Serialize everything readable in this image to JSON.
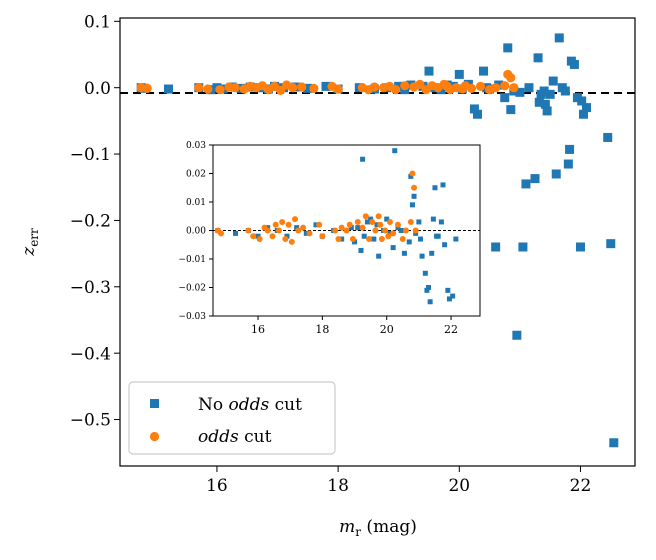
{
  "chart_data": [
    {
      "type": "scatter",
      "title": "",
      "xlabel": "m_r (mag)",
      "xlabel_main": "m",
      "xlabel_sub": "r",
      "xlabel_unit": " (mag)",
      "ylabel": "z_err",
      "ylabel_main": "z",
      "ylabel_sub": "err",
      "xlim": [
        14.4,
        22.9
      ],
      "ylim": [
        -0.57,
        0.105
      ],
      "xticks": [
        16,
        18,
        20,
        22
      ],
      "yticks": [
        0.1,
        0.0,
        -0.1,
        -0.2,
        -0.3,
        -0.4,
        -0.5
      ],
      "xtick_labels": [
        "16",
        "18",
        "20",
        "22"
      ],
      "ytick_labels": [
        "0.1",
        "0.0",
        "−0.1",
        "−0.2",
        "−0.3",
        "−0.4",
        "−0.5"
      ],
      "reference_line": 0,
      "grid": false,
      "legend_position": "bottom-left",
      "legend": {
        "no_odds": {
          "prefix": "No ",
          "italic": "odds",
          "suffix": " cut"
        },
        "odds": {
          "prefix": "",
          "italic": "odds",
          "suffix": " cut"
        }
      },
      "series": [
        {
          "key": "no_odds",
          "color": "#1f77b4",
          "marker": "square",
          "points": [
            [
              14.75,
              0.0
            ],
            [
              14.8,
              -0.001
            ],
            [
              15.2,
              -0.002
            ],
            [
              15.7,
              0.0
            ],
            [
              15.9,
              -0.003
            ],
            [
              16.0,
              0.0
            ],
            [
              16.1,
              -0.002
            ],
            [
              16.25,
              0.001
            ],
            [
              16.4,
              -0.001
            ],
            [
              16.55,
              0.001
            ],
            [
              16.7,
              0.0
            ],
            [
              16.85,
              -0.002
            ],
            [
              16.95,
              0.002
            ],
            [
              17.1,
              0.0
            ],
            [
              17.3,
              0.001
            ],
            [
              17.5,
              -0.001
            ],
            [
              17.8,
              0.002
            ],
            [
              18.0,
              -0.002
            ],
            [
              18.35,
              0.0
            ],
            [
              18.6,
              -0.002
            ],
            [
              18.8,
              0.0
            ],
            [
              19.0,
              0.002
            ],
            [
              19.1,
              -0.003
            ],
            [
              19.2,
              0.004
            ],
            [
              19.4,
              0.002
            ],
            [
              19.5,
              0.025
            ],
            [
              19.6,
              0.0
            ],
            [
              19.7,
              -0.003
            ],
            [
              19.8,
              0.004
            ],
            [
              19.9,
              0.002
            ],
            [
              20.0,
              0.02
            ],
            [
              20.05,
              -0.002
            ],
            [
              20.15,
              0.005
            ],
            [
              20.25,
              -0.032
            ],
            [
              20.3,
              -0.04
            ],
            [
              20.4,
              0.025
            ],
            [
              20.45,
              0.0
            ],
            [
              20.5,
              -0.002
            ],
            [
              20.6,
              -0.24
            ],
            [
              20.65,
              0.004
            ],
            [
              20.75,
              -0.015
            ],
            [
              20.8,
              0.06
            ],
            [
              20.85,
              -0.033
            ],
            [
              20.9,
              -0.005
            ],
            [
              20.95,
              -0.373
            ],
            [
              21.0,
              -0.007
            ],
            [
              21.05,
              -0.24
            ],
            [
              21.1,
              -0.145
            ],
            [
              21.15,
              0.0
            ],
            [
              21.25,
              -0.137
            ],
            [
              21.3,
              0.045
            ],
            [
              21.32,
              -0.022
            ],
            [
              21.35,
              -0.01
            ],
            [
              21.4,
              -0.005
            ],
            [
              21.42,
              -0.025
            ],
            [
              21.45,
              -0.035
            ],
            [
              21.5,
              -0.01
            ],
            [
              21.55,
              0.01
            ],
            [
              21.6,
              -0.13
            ],
            [
              21.65,
              0.075
            ],
            [
              21.7,
              0.0
            ],
            [
              21.75,
              -0.005
            ],
            [
              21.8,
              -0.115
            ],
            [
              21.82,
              -0.093
            ],
            [
              21.85,
              0.04
            ],
            [
              21.9,
              0.035
            ],
            [
              21.95,
              -0.015
            ],
            [
              22.0,
              -0.24
            ],
            [
              22.02,
              -0.02
            ],
            [
              22.05,
              -0.04
            ],
            [
              22.1,
              -0.03
            ],
            [
              22.45,
              -0.075
            ],
            [
              22.5,
              -0.235
            ],
            [
              22.55,
              -0.535
            ]
          ]
        },
        {
          "key": "odds",
          "color": "#ff7f0e",
          "marker": "circle",
          "points": [
            [
              14.75,
              0.0
            ],
            [
              14.85,
              -0.001
            ],
            [
              15.7,
              0.0
            ],
            [
              15.85,
              -0.002
            ],
            [
              16.05,
              -0.003
            ],
            [
              16.2,
              0.001
            ],
            [
              16.3,
              0.0
            ],
            [
              16.45,
              -0.002
            ],
            [
              16.55,
              0.002
            ],
            [
              16.65,
              0.0
            ],
            [
              16.75,
              0.003
            ],
            [
              16.85,
              -0.003
            ],
            [
              16.95,
              0.002
            ],
            [
              17.05,
              -0.004
            ],
            [
              17.15,
              0.004
            ],
            [
              17.25,
              0.0
            ],
            [
              17.4,
              0.001
            ],
            [
              17.6,
              -0.001
            ],
            [
              17.9,
              0.002
            ],
            [
              18.0,
              -0.002
            ],
            [
              18.4,
              0.0
            ],
            [
              18.5,
              -0.003
            ],
            [
              18.6,
              0.001
            ],
            [
              18.75,
              0.0
            ],
            [
              18.85,
              0.002
            ],
            [
              18.95,
              -0.003
            ],
            [
              19.1,
              0.003
            ],
            [
              19.25,
              0.001
            ],
            [
              19.35,
              0.005
            ],
            [
              19.45,
              -0.003
            ],
            [
              19.55,
              0.003
            ],
            [
              19.65,
              0.0
            ],
            [
              19.75,
              0.005
            ],
            [
              19.8,
              0.002
            ],
            [
              19.85,
              -0.003
            ],
            [
              19.95,
              0.0
            ],
            [
              20.05,
              -0.002
            ],
            [
              20.1,
              0.003
            ],
            [
              20.2,
              -0.001
            ],
            [
              20.35,
              0.002
            ],
            [
              20.5,
              -0.003
            ],
            [
              20.6,
              0.0
            ],
            [
              20.75,
              0.003
            ],
            [
              20.8,
              0.02
            ],
            [
              20.85,
              0.015
            ],
            [
              20.9,
              0.0
            ]
          ]
        }
      ]
    },
    {
      "type": "scatter",
      "title": "",
      "note": "inset zoom",
      "xlim": [
        14.6,
        22.9
      ],
      "ylim": [
        -0.03,
        0.03
      ],
      "xticks": [
        16,
        18,
        20,
        22
      ],
      "yticks": [
        0.03,
        0.02,
        0.01,
        0.0,
        -0.01,
        -0.02,
        -0.03
      ],
      "xtick_labels": [
        "16",
        "18",
        "20",
        "22"
      ],
      "ytick_labels": [
        "0.03",
        "0.02",
        "0.01",
        "0.00",
        "−0.01",
        "−0.02",
        "−0.03"
      ],
      "reference_line": 0,
      "grid": false,
      "series": [
        {
          "key": "no_odds",
          "color": "#1f77b4",
          "marker": "square",
          "points": [
            [
              14.75,
              0.0
            ],
            [
              15.3,
              -0.001
            ],
            [
              15.7,
              0.0
            ],
            [
              16.0,
              -0.002
            ],
            [
              16.3,
              0.001
            ],
            [
              16.6,
              0.0
            ],
            [
              16.9,
              -0.002
            ],
            [
              17.2,
              0.001
            ],
            [
              17.5,
              -0.001
            ],
            [
              17.8,
              0.002
            ],
            [
              18.0,
              -0.002
            ],
            [
              18.35,
              0.0
            ],
            [
              18.6,
              -0.003
            ],
            [
              18.9,
              0.001
            ],
            [
              19.0,
              -0.004
            ],
            [
              19.1,
              0.001
            ],
            [
              19.2,
              -0.007
            ],
            [
              19.25,
              0.025
            ],
            [
              19.3,
              -0.002
            ],
            [
              19.4,
              0.003
            ],
            [
              19.5,
              0.004
            ],
            [
              19.6,
              -0.003
            ],
            [
              19.7,
              0.002
            ],
            [
              19.75,
              -0.009
            ],
            [
              19.9,
              0.0
            ],
            [
              20.0,
              0.004
            ],
            [
              20.1,
              -0.001
            ],
            [
              20.2,
              -0.006
            ],
            [
              20.25,
              0.028
            ],
            [
              20.35,
              0.001
            ],
            [
              20.45,
              0.0
            ],
            [
              20.55,
              -0.008
            ],
            [
              20.7,
              -0.004
            ],
            [
              20.75,
              0.019
            ],
            [
              20.8,
              0.009
            ],
            [
              20.85,
              0.012
            ],
            [
              20.9,
              -0.001
            ],
            [
              21.0,
              0.003
            ],
            [
              21.05,
              -0.003
            ],
            [
              21.1,
              -0.009
            ],
            [
              21.2,
              -0.015
            ],
            [
              21.25,
              -0.021
            ],
            [
              21.3,
              -0.02
            ],
            [
              21.35,
              -0.025
            ],
            [
              21.4,
              -0.008
            ],
            [
              21.45,
              0.004
            ],
            [
              21.5,
              0.015
            ],
            [
              21.55,
              -0.002
            ],
            [
              21.6,
              -0.002
            ],
            [
              21.7,
              0.003
            ],
            [
              21.75,
              0.016
            ],
            [
              21.8,
              -0.005
            ],
            [
              21.9,
              -0.021
            ],
            [
              21.95,
              -0.024
            ],
            [
              22.05,
              -0.023
            ],
            [
              22.15,
              -0.003
            ]
          ]
        },
        {
          "key": "odds",
          "color": "#ff7f0e",
          "marker": "circle",
          "points": [
            [
              14.75,
              0.0
            ],
            [
              14.85,
              -0.001
            ],
            [
              15.7,
              0.0
            ],
            [
              15.85,
              -0.002
            ],
            [
              16.05,
              -0.003
            ],
            [
              16.2,
              0.001
            ],
            [
              16.3,
              0.0
            ],
            [
              16.45,
              -0.002
            ],
            [
              16.55,
              0.002
            ],
            [
              16.65,
              0.0
            ],
            [
              16.75,
              0.003
            ],
            [
              16.85,
              -0.003
            ],
            [
              16.95,
              0.002
            ],
            [
              17.05,
              -0.004
            ],
            [
              17.15,
              0.004
            ],
            [
              17.25,
              0.0
            ],
            [
              17.4,
              0.001
            ],
            [
              17.6,
              -0.001
            ],
            [
              17.9,
              0.002
            ],
            [
              18.0,
              -0.002
            ],
            [
              18.4,
              0.0
            ],
            [
              18.5,
              -0.003
            ],
            [
              18.6,
              0.001
            ],
            [
              18.75,
              0.0
            ],
            [
              18.85,
              0.002
            ],
            [
              18.95,
              -0.003
            ],
            [
              19.1,
              0.003
            ],
            [
              19.25,
              0.001
            ],
            [
              19.35,
              0.005
            ],
            [
              19.45,
              -0.003
            ],
            [
              19.55,
              0.003
            ],
            [
              19.65,
              0.0
            ],
            [
              19.75,
              0.005
            ],
            [
              19.8,
              0.002
            ],
            [
              19.85,
              -0.003
            ],
            [
              19.95,
              0.0
            ],
            [
              20.05,
              -0.002
            ],
            [
              20.1,
              0.003
            ],
            [
              20.2,
              -0.001
            ],
            [
              20.35,
              0.002
            ],
            [
              20.5,
              -0.003
            ],
            [
              20.6,
              0.0
            ],
            [
              20.75,
              0.003
            ],
            [
              20.8,
              0.02
            ],
            [
              20.85,
              0.015
            ],
            [
              20.9,
              0.0
            ]
          ]
        }
      ]
    }
  ]
}
